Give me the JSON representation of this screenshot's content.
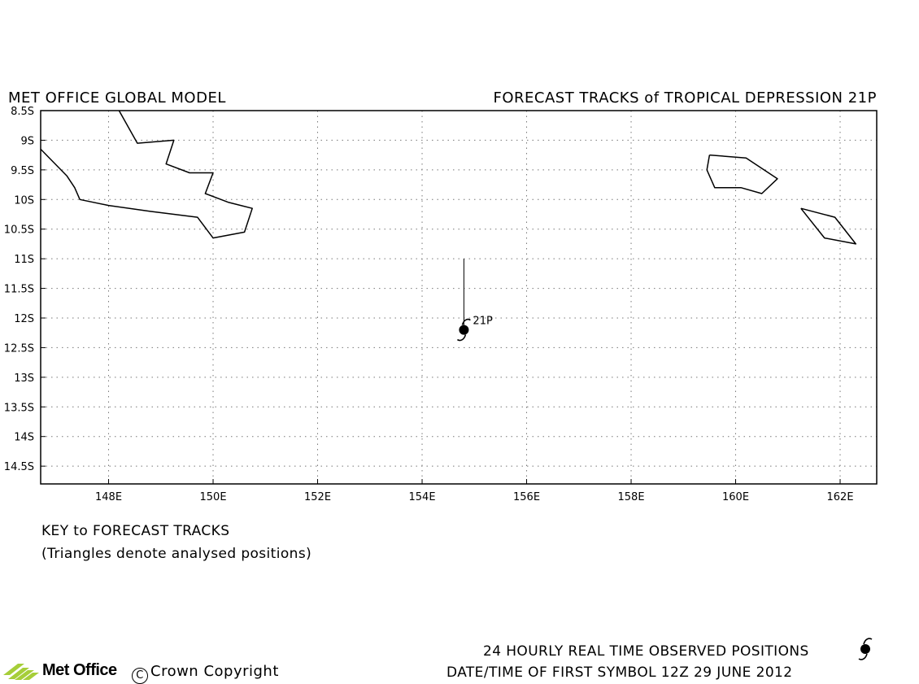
{
  "header": {
    "left_title": "MET OFFICE GLOBAL MODEL",
    "right_title": "FORECAST TRACKS of TROPICAL DEPRESSION 21P"
  },
  "map": {
    "lon_range": [
      146.7,
      162.7
    ],
    "lat_range": [
      -8.5,
      -14.8
    ],
    "lat_ticks": [
      {
        "value": -8.5,
        "label": "8.5S"
      },
      {
        "value": -9.0,
        "label": "9S"
      },
      {
        "value": -9.5,
        "label": "9.5S"
      },
      {
        "value": -10.0,
        "label": "10S"
      },
      {
        "value": -10.5,
        "label": "10.5S"
      },
      {
        "value": -11.0,
        "label": "11S"
      },
      {
        "value": -11.5,
        "label": "11.5S"
      },
      {
        "value": -12.0,
        "label": "12S"
      },
      {
        "value": -12.5,
        "label": "12.5S"
      },
      {
        "value": -13.0,
        "label": "13S"
      },
      {
        "value": -13.5,
        "label": "13.5S"
      },
      {
        "value": -14.0,
        "label": "14S"
      },
      {
        "value": -14.5,
        "label": "14.5S"
      }
    ],
    "lon_ticks": [
      {
        "value": 148,
        "label": "148E"
      },
      {
        "value": 150,
        "label": "150E"
      },
      {
        "value": 152,
        "label": "152E"
      },
      {
        "value": 154,
        "label": "154E"
      },
      {
        "value": 156,
        "label": "156E"
      },
      {
        "value": 158,
        "label": "158E"
      },
      {
        "value": 160,
        "label": "160E"
      },
      {
        "value": 162,
        "label": "162E"
      }
    ],
    "grid": "dotted",
    "coastlines": [
      {
        "name": "new-guinea-east",
        "points": [
          [
            146.7,
            -9.15
          ],
          [
            147.2,
            -9.6
          ],
          [
            147.35,
            -9.8
          ],
          [
            147.45,
            -10.0
          ],
          [
            148.0,
            -10.1
          ],
          [
            148.8,
            -10.2
          ],
          [
            149.7,
            -10.3
          ],
          [
            150.0,
            -10.65
          ],
          [
            150.6,
            -10.55
          ],
          [
            150.75,
            -10.15
          ],
          [
            150.3,
            -10.05
          ],
          [
            149.85,
            -9.9
          ],
          [
            150.0,
            -9.55
          ],
          [
            149.55,
            -9.55
          ],
          [
            149.1,
            -9.4
          ],
          [
            149.25,
            -9.0
          ],
          [
            148.55,
            -9.05
          ],
          [
            148.2,
            -8.5
          ]
        ]
      },
      {
        "name": "new-georgia-islands",
        "points": [
          [
            159.5,
            -9.25
          ],
          [
            160.2,
            -9.3
          ],
          [
            160.8,
            -9.65
          ],
          [
            160.5,
            -9.9
          ],
          [
            160.1,
            -9.8
          ],
          [
            159.6,
            -9.8
          ],
          [
            159.45,
            -9.5
          ],
          [
            159.5,
            -9.25
          ]
        ]
      },
      {
        "name": "makira-island",
        "points": [
          [
            161.25,
            -10.15
          ],
          [
            161.9,
            -10.3
          ],
          [
            162.3,
            -10.75
          ],
          [
            161.7,
            -10.65
          ],
          [
            161.25,
            -10.15
          ]
        ]
      }
    ],
    "storm": {
      "label": "21P",
      "track": [
        [
          154.8,
          -11.0
        ],
        [
          154.8,
          -12.2
        ]
      ],
      "symbol_position": [
        154.8,
        -12.2
      ]
    }
  },
  "key": {
    "title": "KEY to FORECAST TRACKS",
    "subtitle": "(Triangles denote analysed positions)"
  },
  "footer": {
    "observed_label": "24 HOURLY REAL TIME OBSERVED POSITIONS",
    "datetime_label": "DATE/TIME OF FIRST SYMBOL 12Z 29 JUNE 2012",
    "logo_text": "Met Office",
    "copyright": "Crown Copyright",
    "copyright_symbol": "C"
  }
}
